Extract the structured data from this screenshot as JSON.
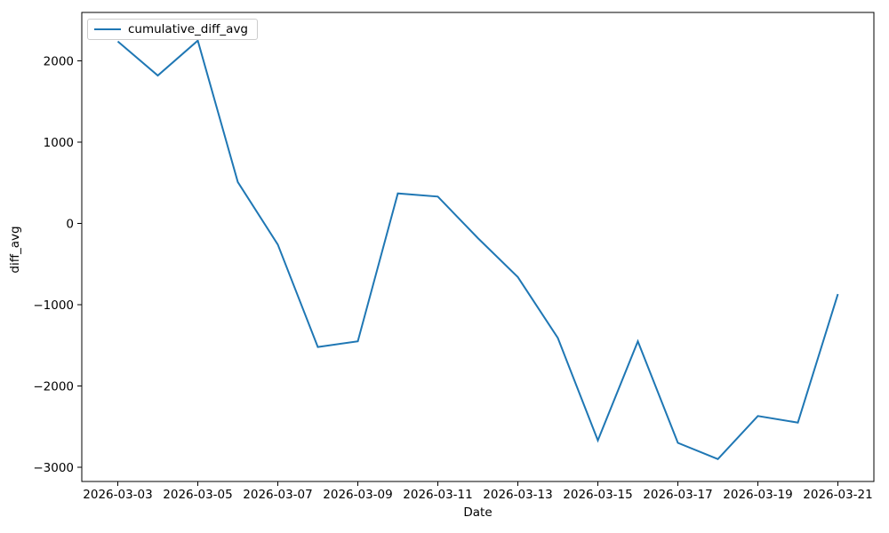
{
  "figure": {
    "background": "#ffffff",
    "spine_color": "#000000",
    "text_color": "#000000"
  },
  "chart_data": {
    "type": "line",
    "title": "",
    "xlabel": "Date",
    "ylabel": "diff_avg",
    "grid": false,
    "legend": {
      "position": "upper left",
      "entries": [
        "cumulative_diff_avg"
      ]
    },
    "categories": [
      "2026-03-03",
      "2026-03-04",
      "2026-03-05",
      "2026-03-06",
      "2026-03-07",
      "2026-03-08",
      "2026-03-09",
      "2026-03-10",
      "2026-03-11",
      "2026-03-12",
      "2026-03-13",
      "2026-03-14",
      "2026-03-15",
      "2026-03-16",
      "2026-03-17",
      "2026-03-18",
      "2026-03-19",
      "2026-03-20",
      "2026-03-21"
    ],
    "series": [
      {
        "name": "cumulative_diff_avg",
        "color": "#1f77b4",
        "values": [
          2240,
          1820,
          2250,
          510,
          -260,
          -1520,
          -1450,
          370,
          330,
          -180,
          -660,
          -1410,
          -2670,
          -1450,
          -2700,
          -2900,
          -2370,
          -2450,
          -870
        ]
      }
    ],
    "xticks": [
      "2026-03-03",
      "2026-03-05",
      "2026-03-07",
      "2026-03-09",
      "2026-03-11",
      "2026-03-13",
      "2026-03-15",
      "2026-03-17",
      "2026-03-19",
      "2026-03-21"
    ],
    "yticks": [
      -3000,
      -2000,
      -1000,
      0,
      1000,
      2000
    ],
    "ylim": [
      -3175,
      2596
    ],
    "xlim_index": [
      -0.9,
      18.9
    ]
  }
}
